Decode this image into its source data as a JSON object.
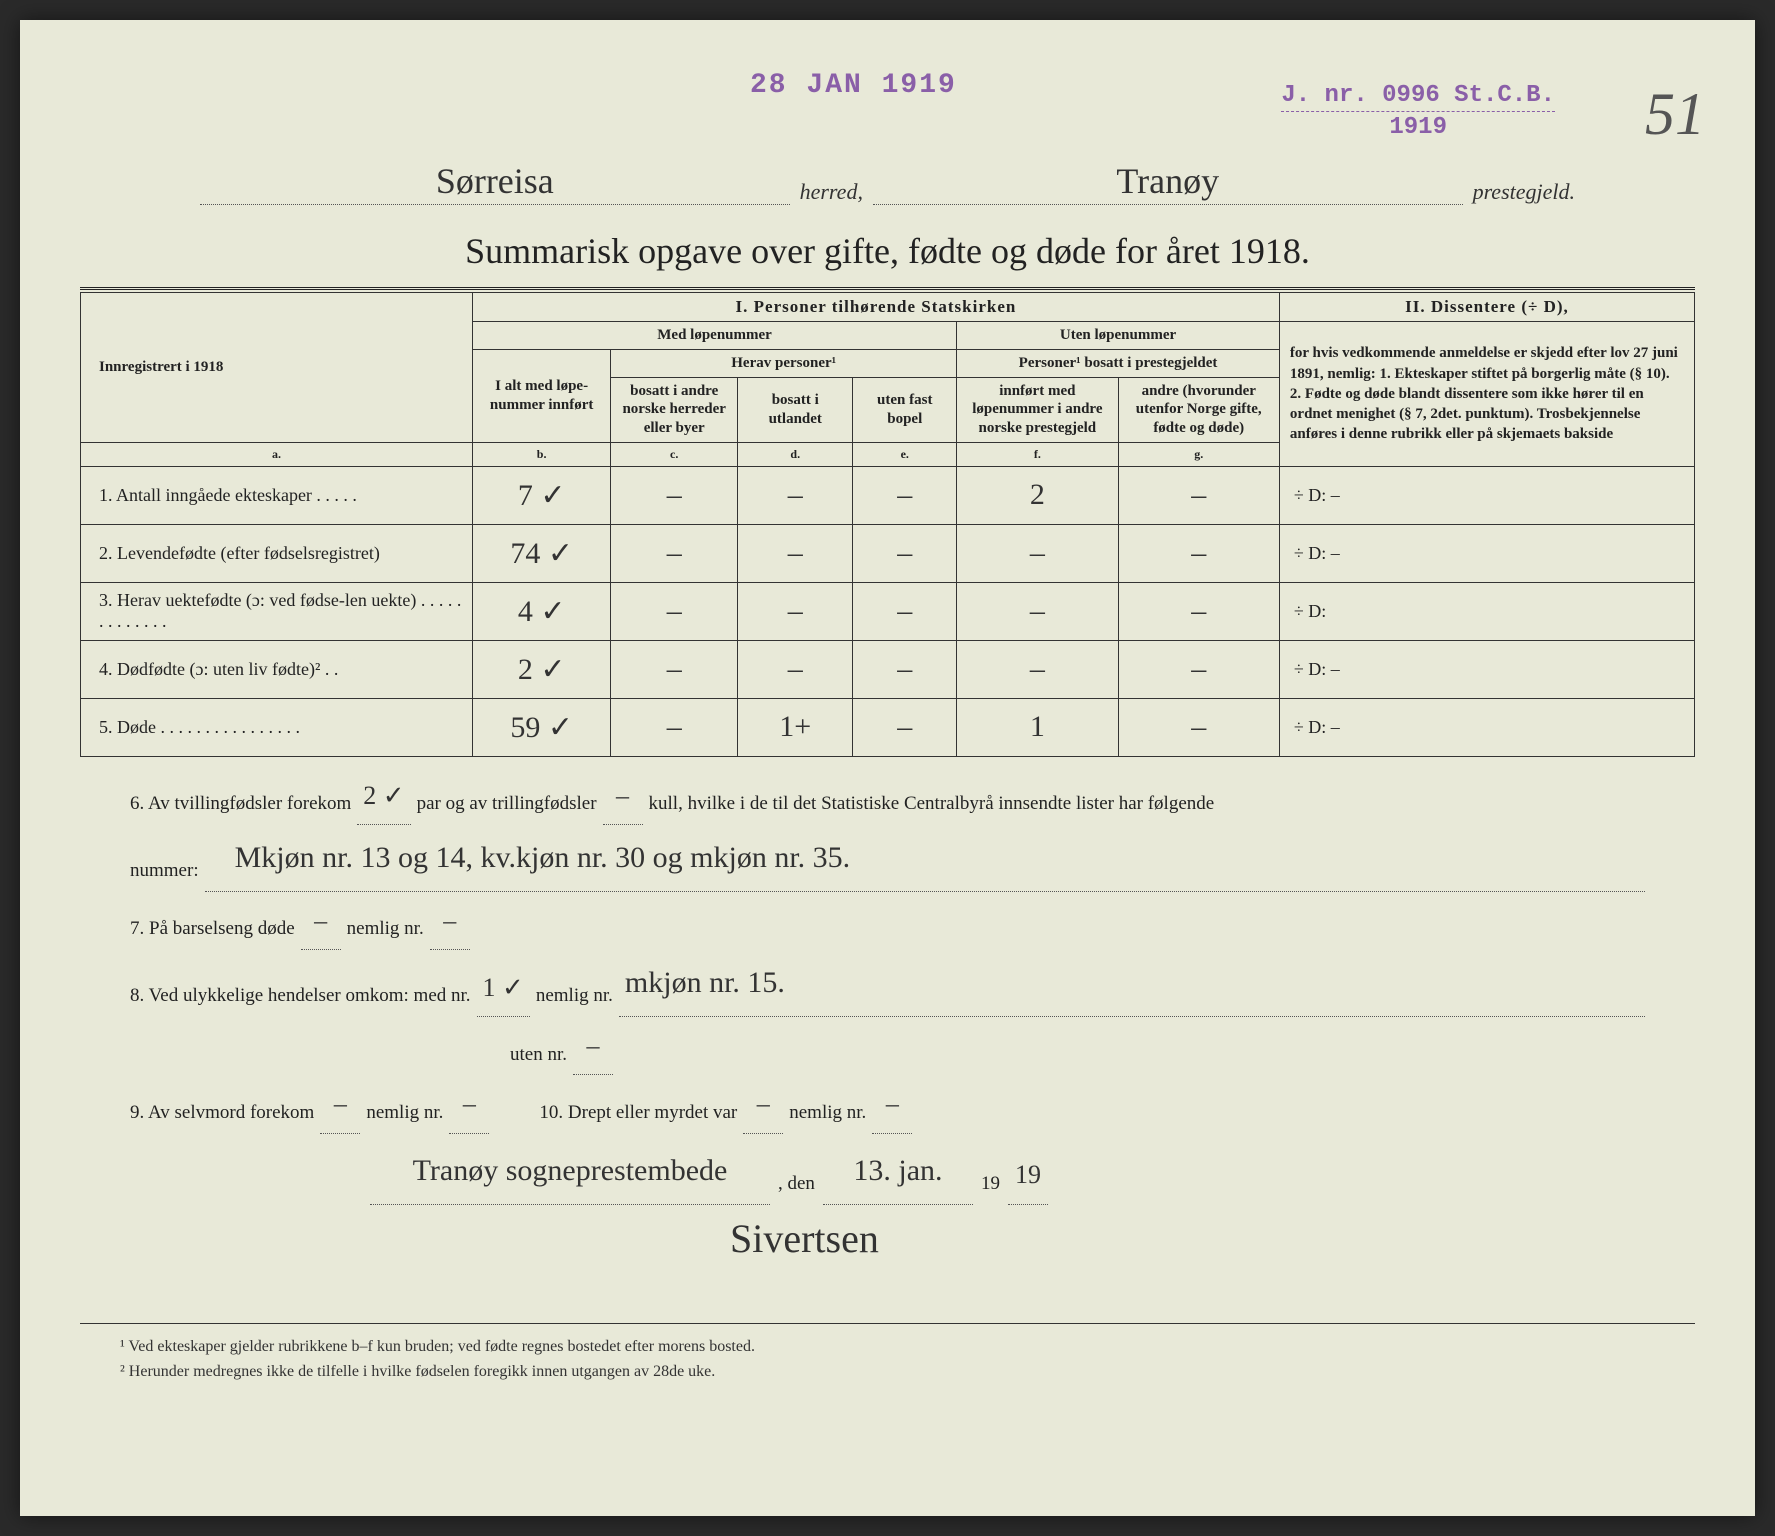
{
  "stamps": {
    "date": "28 JAN 1919",
    "journal_prefix": "J. nr.",
    "journal_number": "0996",
    "journal_suffix": "St.C.B.",
    "journal_year": "1919"
  },
  "page_number": "51",
  "header": {
    "herred_value": "Sørreisa",
    "herred_label": "herred,",
    "prestegjeld_value": "Tranøy",
    "prestegjeld_label": "prestegjeld."
  },
  "title": "Summarisk opgave over gifte, fødte og døde for året 1918.",
  "table": {
    "left_header": "Innregistrert i 1918",
    "section1": "I.  Personer tilhørende Statskirken",
    "section2": "II.  Dissentere (÷ D),",
    "med_lop": "Med løpenummer",
    "uten_lop": "Uten løpenummer",
    "col_a_head": "I alt med løpe-nummer innført",
    "herav": "Herav personer¹",
    "col_b": "bosatt i andre norske herreder eller byer",
    "col_c": "bosatt i utlandet",
    "col_d": "uten fast bopel",
    "personer_head": "Personer¹ bosatt i prestegjeldet",
    "col_e": "innført med løpenummer i andre norske prestegjeld",
    "col_f": "andre (hvorunder utenfor Norge gifte, fødte og døde)",
    "diss_text": "for hvis vedkommende anmeldelse er skjedd efter lov 27 juni 1891, nemlig: 1. Ekteskaper stiftet på borgerlig måte (§ 10). 2. Fødte og døde blandt dissentere som ikke hører til en ordnet menighet (§ 7, 2det. punktum). Trosbekjennelse anføres i denne rubrikk eller på skjemaets bakside",
    "col_letters": {
      "a": "a.",
      "b": "b.",
      "c": "c.",
      "d": "d.",
      "e": "e.",
      "f": "f.",
      "g": "g."
    },
    "rows": [
      {
        "label": "1. Antall inngåede ekteskaper . . . . .",
        "a": "7 ✓",
        "b": "–",
        "c": "–",
        "d": "–",
        "e": "2",
        "f": "–",
        "g": "÷ D:  –"
      },
      {
        "label": "2. Levendefødte (efter fødselsregistret)",
        "a": "74 ✓",
        "b": "–",
        "c": "–",
        "d": "–",
        "e": "–",
        "f": "–",
        "g": "÷ D:  –"
      },
      {
        "label": "3. Herav uektefødte (ɔ: ved fødse-len uekte) . . . . . . . . . . . . .",
        "a": "4 ✓",
        "b": "–",
        "c": "–",
        "d": "–",
        "e": "–",
        "f": "–",
        "g": "÷ D:"
      },
      {
        "label": "4. Dødfødte (ɔ: uten liv fødte)² . .",
        "a": "2 ✓",
        "b": "–",
        "c": "–",
        "d": "–",
        "e": "–",
        "f": "–",
        "g": "÷ D:  –"
      },
      {
        "label": "5. Døde . . . . . . . . . . . . . . . .",
        "a": "59 ✓",
        "b": "–",
        "c": "1+",
        "d": "–",
        "e": "1",
        "f": "–",
        "g": "÷ D:  –"
      }
    ]
  },
  "lower": {
    "q6_a": "6. Av tvillingfødsler forekom",
    "q6_twins": "2 ✓",
    "q6_b": "par og av trillingfødsler",
    "q6_trip": "–",
    "q6_c": "kull, hvilke i de til det Statistiske Centralbyrå innsendte lister har følgende",
    "q6_d": "nummer:",
    "q6_answer": "Mkjøn nr. 13 og 14,  kv.kjøn nr. 30 og mkjøn nr. 35.",
    "q7_a": "7. På barselseng døde",
    "q7_v1": "–",
    "q7_b": "nemlig nr.",
    "q7_v2": "–",
    "q8_a": "8. Ved ulykkelige hendelser omkom:  med nr.",
    "q8_v1": "1 ✓",
    "q8_b": "nemlig nr.",
    "q8_answer": "mkjøn nr. 15.",
    "q8_c": "uten nr.",
    "q8_v2": "–",
    "q9_a": "9. Av selvmord forekom",
    "q9_v1": "–",
    "q9_b": "nemlig nr.",
    "q9_v2": "–",
    "q10_a": "10.  Drept eller myrdet var",
    "q10_v1": "–",
    "q10_b": "nemlig nr.",
    "q10_v2": "–",
    "sign_place": "Tranøy sogneprestembede",
    "sign_den": ", den",
    "sign_date": "13. jan.",
    "sign_year_prefix": "19",
    "sign_year_suffix": "19",
    "signature": "Sivertsen"
  },
  "footnotes": {
    "f1": "¹  Ved ekteskaper gjelder rubrikkene b–f kun bruden; ved fødte regnes bostedet efter morens bosted.",
    "f2": "²  Herunder medregnes ikke de tilfelle i hvilke fødselen foregikk innen utgangen av 28de uke."
  }
}
